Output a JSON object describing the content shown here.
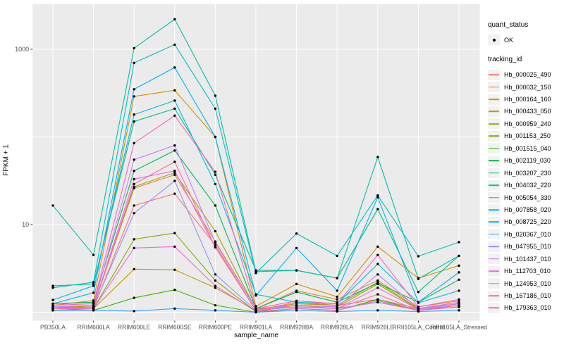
{
  "panel": {
    "bg": "#EBEBEB",
    "grid_color": "#FFFFFF",
    "point_color": "#000000"
  },
  "legend": {
    "quant_status": {
      "title": "quant_status",
      "items": [
        {
          "label": "OK",
          "marker": "black-point"
        }
      ]
    },
    "tracking_id": {
      "title": "tracking_id"
    }
  },
  "chart_data": {
    "type": "line",
    "title": "",
    "xlabel": "sample_name",
    "ylabel": "FPKM + 1",
    "y_scale": "log10",
    "y_tick_labels": [
      "10",
      "1000"
    ],
    "y_tick_values": [
      10,
      1000
    ],
    "y_gridlines": [
      1,
      10,
      100,
      1000
    ],
    "ylim": [
      0.8,
      3200
    ],
    "grid": "on",
    "legend_position": "right",
    "marker": "black point on every vertex (quant_status OK)",
    "categories": [
      "PB350LA",
      "RRIM600LA",
      "RRIM600LE",
      "RRIM600SE",
      "RRIM600PE",
      "RRIM901LA",
      "RRIM928BA",
      "RRIM928LA",
      "RRIM928LE",
      "RRII105LA_Control",
      "RRII105LA_Stressed"
    ],
    "series": [
      {
        "name": "Hb_000025_490",
        "color": "#F8766D",
        "values": [
          1.15,
          1.1,
          16.5,
          22.5,
          5.8,
          1.05,
          1.3,
          1.2,
          1.4,
          1.1,
          1.25
        ]
      },
      {
        "name": "Hb_000032_150",
        "color": "#EA8331",
        "values": [
          1.1,
          1.2,
          26,
          37,
          6.4,
          1.1,
          1.76,
          1.4,
          2.3,
          1.15,
          1.35
        ]
      },
      {
        "name": "Hb_000164_160",
        "color": "#D89000",
        "values": [
          1.2,
          1.36,
          290,
          340,
          100,
          1.17,
          2.1,
          1.5,
          5.6,
          2.45,
          3.4
        ]
      },
      {
        "name": "Hb_000433_050",
        "color": "#C09B00",
        "values": [
          1.1,
          1.1,
          3.1,
          3.05,
          1.9,
          1.05,
          1.15,
          1.1,
          1.3,
          1.05,
          1.2
        ]
      },
      {
        "name": "Hb_000959_240",
        "color": "#A3A500",
        "values": [
          1.15,
          1.15,
          27,
          39,
          8.4,
          1.08,
          1.25,
          1.2,
          2.2,
          1.1,
          1.3
        ]
      },
      {
        "name": "Hb_001153_250",
        "color": "#7CAE00",
        "values": [
          1.05,
          1.1,
          6.8,
          8.0,
          2.3,
          1.02,
          1.2,
          1.15,
          2.1,
          1.08,
          1.25
        ]
      },
      {
        "name": "Hb_001515_040",
        "color": "#39B600",
        "values": [
          1.05,
          1.05,
          1.46,
          1.8,
          1.2,
          1.0,
          1.1,
          1.05,
          1.4,
          1.05,
          1.15
        ]
      },
      {
        "name": "Hb_002119_030",
        "color": "#00BB4E",
        "values": [
          1.25,
          1.3,
          41,
          70,
          16.5,
          1.1,
          1.7,
          1.3,
          2.15,
          1.3,
          2.35
        ]
      },
      {
        "name": "Hb_003207_230",
        "color": "#00BF7D",
        "values": [
          2.0,
          2.1,
          150,
          210,
          37,
          3.0,
          3.0,
          2.45,
          15,
          1.7,
          4.4
        ]
      },
      {
        "name": "Hb_004032_220",
        "color": "#00C1A3",
        "values": [
          16.5,
          4.5,
          1030,
          2200,
          295,
          2.9,
          3.0,
          2.45,
          59,
          2.4,
          4.4
        ]
      },
      {
        "name": "Hb_005054_330",
        "color": "#00BFC4",
        "values": [
          1.9,
          2.2,
          700,
          1130,
          210,
          2.8,
          7.9,
          4.4,
          21.5,
          4.35,
          6.3
        ]
      },
      {
        "name": "Hb_007858_020",
        "color": "#00BAE0",
        "values": [
          1.38,
          2.0,
          180,
          260,
          29,
          1.6,
          1.3,
          1.25,
          3.55,
          1.28,
          1.76
        ]
      },
      {
        "name": "Hb_008725_220",
        "color": "#00B0F6",
        "values": [
          1.25,
          1.67,
          350,
          620,
          100,
          1.55,
          5.4,
          1.76,
          20.5,
          1.3,
          2.85
        ]
      },
      {
        "name": "Hb_020367_010",
        "color": "#35A2FF",
        "values": [
          1.05,
          1.05,
          1.03,
          1.1,
          1.05,
          1.0,
          1.05,
          1.02,
          1.05,
          1.02,
          1.05
        ]
      },
      {
        "name": "Hb_047955_010",
        "color": "#9590FF",
        "values": [
          1.1,
          1.15,
          13.5,
          31.5,
          2.7,
          1.05,
          1.15,
          1.1,
          1.3,
          1.08,
          1.2
        ]
      },
      {
        "name": "Hb_101437_010",
        "color": "#C77CFF",
        "values": [
          1.15,
          1.2,
          55,
          80,
          6.2,
          1.1,
          1.2,
          1.15,
          2.7,
          1.1,
          1.3
        ]
      },
      {
        "name": "Hb_112703_010",
        "color": "#E76BF3",
        "values": [
          1.1,
          1.15,
          33,
          41,
          5.5,
          1.05,
          1.2,
          1.1,
          1.9,
          1.08,
          1.25
        ]
      },
      {
        "name": "Hb_124953_010",
        "color": "#FA62DB",
        "values": [
          1.1,
          1.1,
          5.4,
          5.6,
          2.0,
          1.02,
          1.1,
          1.05,
          1.35,
          1.05,
          1.15
        ]
      },
      {
        "name": "Hb_167186_010",
        "color": "#FF62BC",
        "values": [
          1.2,
          1.25,
          85,
          175,
          40,
          1.1,
          1.35,
          1.25,
          4.5,
          1.15,
          1.4
        ]
      },
      {
        "name": "Hb_179363_010",
        "color": "#FF6A98",
        "values": [
          1.1,
          1.15,
          29,
          52,
          5.5,
          1.05,
          1.2,
          1.1,
          1.6,
          1.05,
          1.2
        ]
      }
    ]
  }
}
